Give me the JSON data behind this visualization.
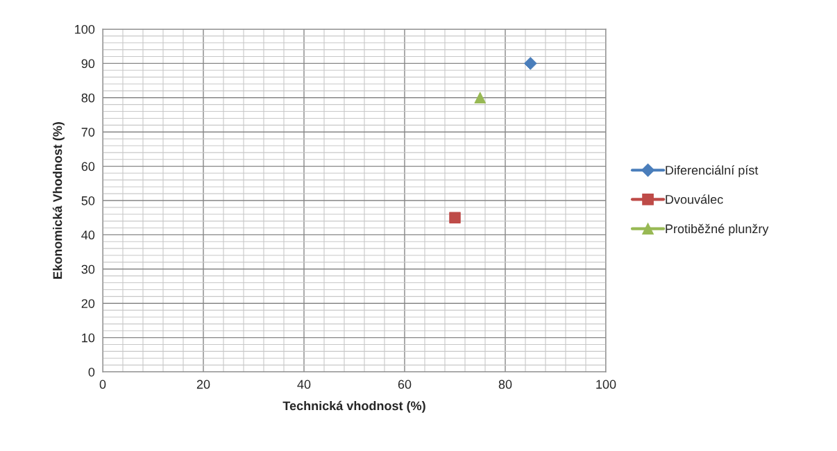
{
  "chart_data": {
    "type": "scatter",
    "xlabel": "Technická vhodnost (%)",
    "ylabel": "Ekonomická Vhodnost (%)",
    "series": [
      {
        "name": "Diferenciální píst",
        "color": "#4a7ebb",
        "marker": "diamond",
        "x": [
          85
        ],
        "values": [
          90
        ]
      },
      {
        "name": "Dvouválec",
        "color": "#be4b48",
        "marker": "square",
        "x": [
          70
        ],
        "values": [
          45
        ]
      },
      {
        "name": "Protiběžné plunžry",
        "color": "#98b954",
        "marker": "triangle",
        "x": [
          75
        ],
        "values": [
          80
        ]
      }
    ],
    "xlim": [
      0,
      100
    ],
    "ylim": [
      0,
      100
    ],
    "xticks": [
      0,
      {
        "value": 4,
        "label": null
      },
      {
        "value": 8,
        "label": null
      },
      {
        "value": 12,
        "label": null
      },
      {
        "value": 16,
        "label": null
      },
      20,
      {
        "value": 24,
        "label": null
      },
      {
        "value": 28,
        "label": null
      },
      {
        "value": 32,
        "label": null
      },
      {
        "value": 36,
        "label": null
      },
      40,
      {
        "value": 44,
        "label": null
      },
      {
        "value": 48,
        "label": null
      },
      {
        "value": 52,
        "label": null
      },
      {
        "value": 56,
        "label": null
      },
      60,
      {
        "value": 64,
        "label": null
      },
      {
        "value": 68,
        "label": null
      },
      {
        "value": 72,
        "label": null
      },
      {
        "value": 76,
        "label": null
      },
      80,
      {
        "value": 84,
        "label": null
      },
      {
        "value": 88,
        "label": null
      },
      {
        "value": 92,
        "label": null
      },
      {
        "value": 96,
        "label": null
      },
      100
    ],
    "yticks": [
      0,
      {
        "value": 2,
        "label": null
      },
      {
        "value": 4,
        "label": null
      },
      {
        "value": 6,
        "label": null
      },
      {
        "value": 8,
        "label": null
      },
      10,
      {
        "value": 12,
        "label": null
      },
      {
        "value": 14,
        "label": null
      },
      {
        "value": 16,
        "label": null
      },
      {
        "value": 18,
        "label": null
      },
      20,
      {
        "value": 22,
        "label": null
      },
      {
        "value": 24,
        "label": null
      },
      {
        "value": 26,
        "label": null
      },
      {
        "value": 28,
        "label": null
      },
      30,
      {
        "value": 32,
        "label": null
      },
      {
        "value": 34,
        "label": null
      },
      {
        "value": 36,
        "label": null
      },
      {
        "value": 38,
        "label": null
      },
      40,
      {
        "value": 42,
        "label": null
      },
      {
        "value": 44,
        "label": null
      },
      {
        "value": 46,
        "label": null
      },
      {
        "value": 48,
        "label": null
      },
      50,
      {
        "value": 52,
        "label": null
      },
      {
        "value": 54,
        "label": null
      },
      {
        "value": 56,
        "label": null
      },
      {
        "value": 58,
        "label": null
      },
      60,
      {
        "value": 62,
        "label": null
      },
      {
        "value": 64,
        "label": null
      },
      {
        "value": 66,
        "label": null
      },
      {
        "value": 68,
        "label": null
      },
      70,
      {
        "value": 72,
        "label": null
      },
      {
        "value": 74,
        "label": null
      },
      {
        "value": 76,
        "label": null
      },
      {
        "value": 78,
        "label": null
      },
      80,
      {
        "value": 82,
        "label": null
      },
      {
        "value": 84,
        "label": null
      },
      {
        "value": 86,
        "label": null
      },
      {
        "value": 88,
        "label": null
      },
      90,
      {
        "value": 92,
        "label": null
      },
      {
        "value": 94,
        "label": null
      },
      {
        "value": 96,
        "label": null
      },
      {
        "value": 98,
        "label": null
      },
      100
    ],
    "grid": true,
    "legend": "right"
  }
}
